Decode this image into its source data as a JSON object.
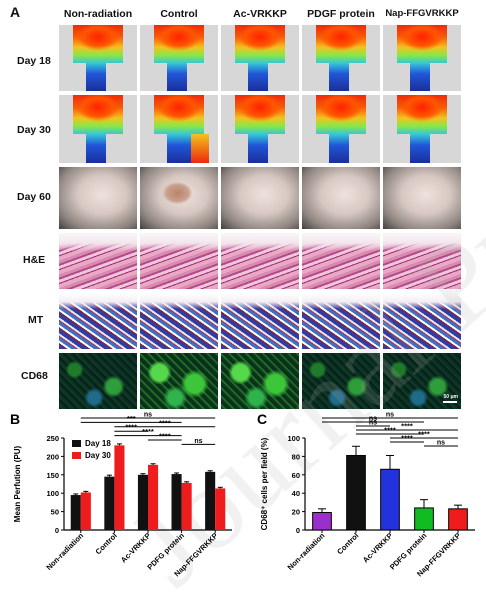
{
  "panel_a": {
    "letter": "A",
    "columns": [
      "Non-radiation",
      "Control",
      "Ac-VRKKP",
      "PDGF protein",
      "Nap-FFGVRKKP"
    ],
    "rows": [
      "Day 18",
      "Day 30",
      "Day 60",
      "H&E",
      "MT",
      "CD68"
    ],
    "scale_bar": "50 μm"
  },
  "watermark": "Journal Pre-proof",
  "chart_data": [
    {
      "type": "bar",
      "panel": "B",
      "categories": [
        "Non-radiation",
        "Control",
        "Ac-VRKKP",
        "PDFG protein",
        "Nap-FFGVRKKP"
      ],
      "series": [
        {
          "name": "Day 18",
          "color": "#111111",
          "values": [
            95,
            145,
            150,
            152,
            158
          ],
          "errors": [
            3,
            4,
            3,
            3,
            3
          ]
        },
        {
          "name": "Day 30",
          "color": "#ee1c1c",
          "values": [
            102,
            230,
            177,
            128,
            113
          ],
          "errors": [
            3,
            4,
            3,
            3,
            3
          ]
        }
      ],
      "ylabel": "Mean Perfution (PU)",
      "ylim": [
        0,
        250
      ],
      "yticks": [
        0,
        50,
        100,
        150,
        200,
        250
      ],
      "legend": "top-left",
      "significance": [
        {
          "from": 0,
          "to": 4,
          "label": "ns"
        },
        {
          "from": 0,
          "to": 3,
          "label": "***"
        },
        {
          "from": 1,
          "to": 4,
          "label": "****"
        },
        {
          "from": 1,
          "to": 2,
          "label": "****"
        },
        {
          "from": 1,
          "to": 3,
          "label": "****"
        },
        {
          "from": 2,
          "to": 3,
          "label": "****"
        },
        {
          "from": 3,
          "to": 4,
          "label": "ns"
        }
      ]
    },
    {
      "type": "bar",
      "panel": "C",
      "categories": [
        "Non-radiation",
        "Control",
        "Ac-VRKKP",
        "PDFG protein",
        "Nap-FFGVRKKP"
      ],
      "values": [
        19,
        81,
        66,
        24,
        23
      ],
      "errors": [
        4,
        10,
        15,
        9,
        4
      ],
      "colors": [
        "#9b2fc9",
        "#111111",
        "#2233dd",
        "#11bb22",
        "#ee1c1c"
      ],
      "ylabel": "CD68⁺ cells per field (%)",
      "ylim": [
        0,
        100
      ],
      "yticks": [
        0,
        20,
        40,
        60,
        80,
        100
      ],
      "significance": [
        {
          "from": 0,
          "to": 4,
          "label": "ns"
        },
        {
          "from": 0,
          "to": 3,
          "label": "ns"
        },
        {
          "from": 1,
          "to": 2,
          "label": "ns"
        },
        {
          "from": 1,
          "to": 4,
          "label": "****"
        },
        {
          "from": 1,
          "to": 3,
          "label": "****"
        },
        {
          "from": 2,
          "to": 4,
          "label": "****"
        },
        {
          "from": 2,
          "to": 3,
          "label": "****"
        },
        {
          "from": 3,
          "to": 4,
          "label": "ns"
        }
      ]
    }
  ]
}
